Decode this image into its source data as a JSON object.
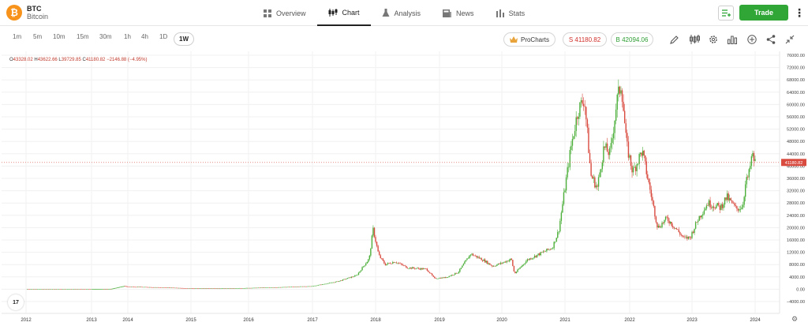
{
  "brand": {
    "symbol": "BTC",
    "name": "Bitcoin",
    "icon": "bitcoin-icon",
    "icon_glyph": "₿",
    "color": "#f7931a"
  },
  "nav": {
    "items": [
      {
        "label": "Overview",
        "icon": "grid-icon"
      },
      {
        "label": "Chart",
        "icon": "candles-icon",
        "active": true
      },
      {
        "label": "Analysis",
        "icon": "flask-icon"
      },
      {
        "label": "News",
        "icon": "newspaper-icon"
      },
      {
        "label": "Stats",
        "icon": "bar-stats-icon"
      }
    ]
  },
  "header": {
    "trade_label": "Trade",
    "trade_color": "#30a637"
  },
  "timeframes": {
    "items": [
      "1m",
      "5m",
      "10m",
      "15m",
      "30m",
      "1h",
      "4h",
      "1D",
      "1W"
    ],
    "active": "1W"
  },
  "toolbar": {
    "prochart_label": "ProCharts",
    "sell_label": "S 41180.82",
    "buy_label": "B 42094.06",
    "sell_color": "#d1302c",
    "buy_color": "#2e9e34"
  },
  "ohlc": {
    "o_key": "O",
    "o_val": "43328.02",
    "h_key": "H",
    "h_val": "43622.66",
    "l_key": "L",
    "l_val": "39729.85",
    "c_key": "C",
    "c_val": "41180.82",
    "change": "−2146.88 (−4.95%)"
  },
  "tradingview_label": "17",
  "chart_data": {
    "type": "candlestick",
    "x_labels": [
      "2012",
      "2013",
      "2014",
      "2015",
      "2016",
      "2017",
      "2018",
      "2019",
      "2020",
      "2021",
      "2022",
      "2023",
      "2024"
    ],
    "y_ticks": [
      "76000.00",
      "72000.00",
      "68000.00",
      "64000.00",
      "60000.00",
      "56000.00",
      "52000.00",
      "48000.00",
      "44000.00",
      "40000.00",
      "36000.00",
      "32000.00",
      "28000.00",
      "24000.00",
      "20000.00",
      "16000.00",
      "12000.00",
      "8000.00",
      "4000.00",
      "0.00",
      "−4000.00"
    ],
    "ylim": [
      -4000,
      76000
    ],
    "current_price_label": "41180.82",
    "current_price": 41180.82,
    "up_color": "#4caf3a",
    "down_color": "#d94a3f",
    "price_path": [
      [
        2012.0,
        5
      ],
      [
        2013.0,
        13
      ],
      [
        2013.3,
        100
      ],
      [
        2013.55,
        110
      ],
      [
        2013.9,
        1000
      ],
      [
        2014.05,
        800
      ],
      [
        2014.5,
        600
      ],
      [
        2015.0,
        300
      ],
      [
        2015.5,
        250
      ],
      [
        2016.0,
        400
      ],
      [
        2016.5,
        650
      ],
      [
        2017.0,
        1000
      ],
      [
        2017.4,
        2500
      ],
      [
        2017.7,
        4500
      ],
      [
        2017.9,
        10000
      ],
      [
        2017.96,
        19500
      ],
      [
        2018.05,
        11000
      ],
      [
        2018.15,
        8000
      ],
      [
        2018.3,
        9000
      ],
      [
        2018.5,
        7000
      ],
      [
        2018.8,
        6500
      ],
      [
        2018.92,
        3500
      ],
      [
        2019.1,
        3800
      ],
      [
        2019.3,
        5500
      ],
      [
        2019.5,
        11500
      ],
      [
        2019.7,
        9500
      ],
      [
        2019.85,
        7500
      ],
      [
        2020.0,
        8500
      ],
      [
        2020.15,
        9800
      ],
      [
        2020.2,
        5000
      ],
      [
        2020.4,
        9500
      ],
      [
        2020.6,
        11500
      ],
      [
        2020.8,
        13500
      ],
      [
        2020.9,
        19000
      ],
      [
        2021.0,
        33000
      ],
      [
        2021.1,
        47000
      ],
      [
        2021.2,
        58000
      ],
      [
        2021.3,
        62000
      ],
      [
        2021.4,
        37000
      ],
      [
        2021.5,
        33000
      ],
      [
        2021.6,
        46000
      ],
      [
        2021.7,
        44000
      ],
      [
        2021.8,
        61000
      ],
      [
        2021.87,
        67000
      ],
      [
        2021.95,
        47000
      ],
      [
        2022.05,
        38000
      ],
      [
        2022.2,
        45000
      ],
      [
        2022.35,
        30000
      ],
      [
        2022.45,
        20000
      ],
      [
        2022.6,
        23000
      ],
      [
        2022.75,
        19500
      ],
      [
        2022.87,
        16500
      ],
      [
        2022.97,
        16800
      ],
      [
        2023.1,
        23000
      ],
      [
        2023.25,
        28000
      ],
      [
        2023.45,
        26500
      ],
      [
        2023.55,
        30000
      ],
      [
        2023.7,
        26000
      ],
      [
        2023.8,
        27000
      ],
      [
        2023.85,
        34500
      ],
      [
        2023.9,
        37000
      ],
      [
        2023.95,
        43500
      ],
      [
        2024.0,
        41180
      ]
    ]
  }
}
